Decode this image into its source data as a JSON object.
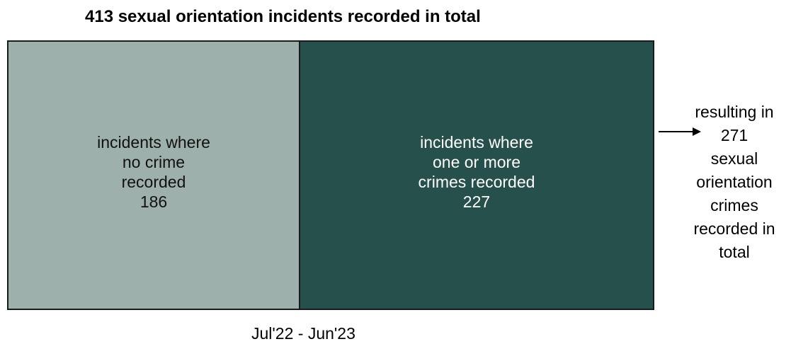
{
  "title": "413 sexual orientation incidents recorded in total",
  "segments": {
    "no_crime": {
      "line1": "incidents where",
      "line2": "no crime",
      "line3": "recorded",
      "value": "186",
      "color": "#9eb0ab"
    },
    "crime": {
      "line1": "incidents where",
      "line2": "one or more",
      "line3": "crimes recorded",
      "value": "227",
      "color": "#26504b"
    }
  },
  "result": {
    "line1": "resulting in",
    "line2": "271",
    "line3": "sexual",
    "line4": "orientation",
    "line5": "crimes",
    "line6": "recorded in",
    "line7": "total"
  },
  "period": "Jul'22 - Jun'23",
  "icons": {
    "arrow": "arrow-right-icon"
  }
}
